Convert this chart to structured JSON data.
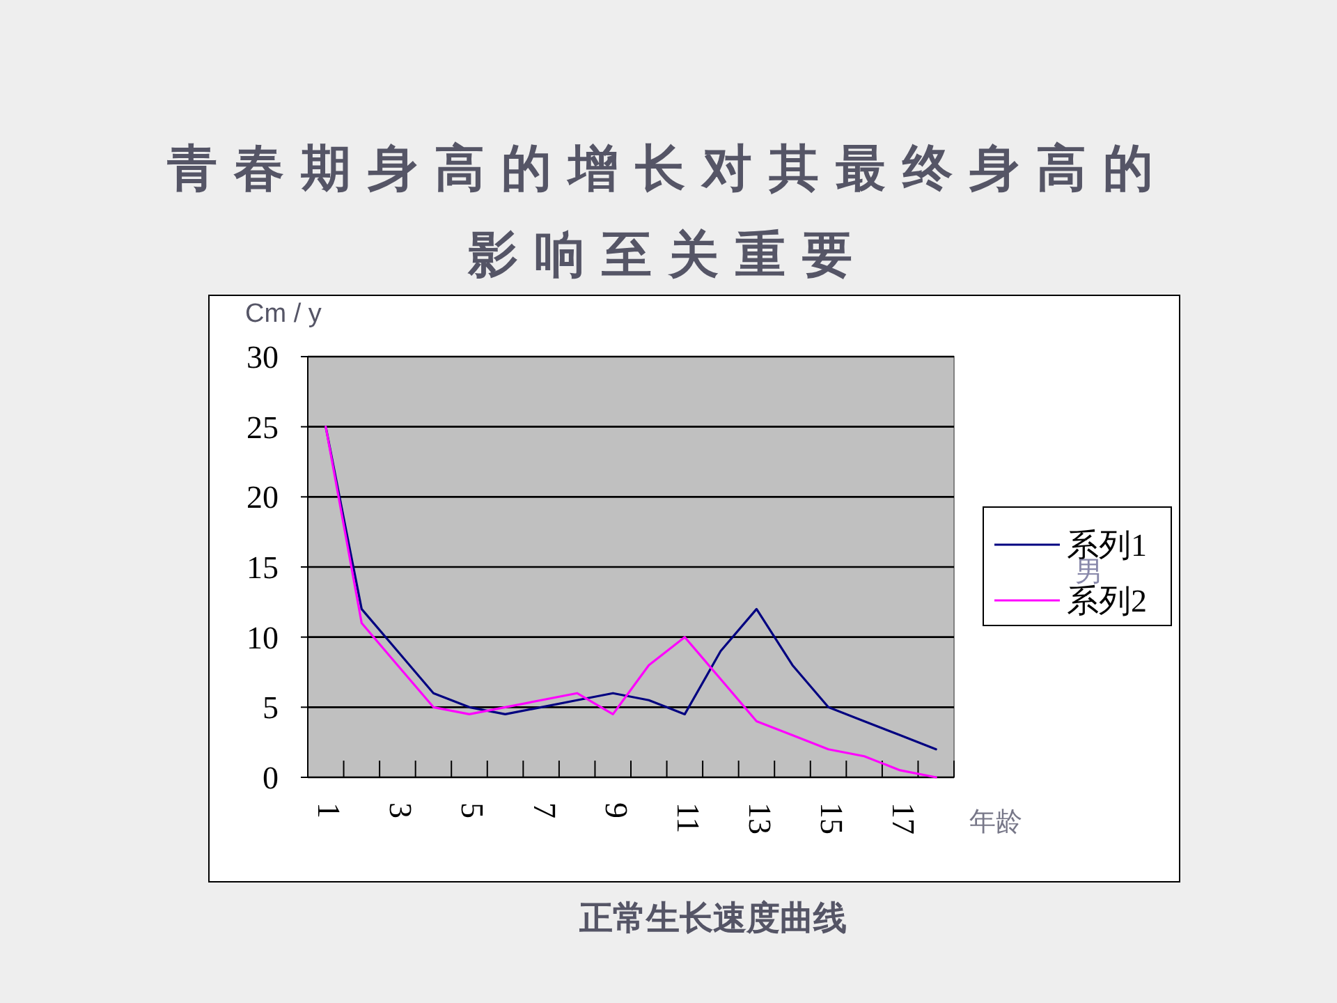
{
  "chart_data": {
    "type": "line",
    "title": "青春期身高的增长对其最终身高的影响至关重要",
    "ylabel": "Cm / y",
    "xlabel": "年龄",
    "annotations": [
      "男",
      "正常生长速度曲线"
    ],
    "categories": [
      "1",
      null,
      "3",
      null,
      "5",
      null,
      "7",
      null,
      "9",
      null,
      "11",
      null,
      "13",
      null,
      "15",
      null,
      "17",
      null
    ],
    "series": [
      {
        "name": "系列1",
        "color": "#000080",
        "values": [
          25,
          12,
          9,
          6,
          5,
          4.5,
          5,
          5.5,
          6,
          5.5,
          4.5,
          9,
          12,
          8,
          5,
          4,
          3,
          2
        ]
      },
      {
        "name": "系列2",
        "color": "#ff00ff",
        "values": [
          25,
          11,
          8,
          5,
          4.5,
          5,
          5.5,
          6,
          4.5,
          8,
          10,
          7,
          4,
          3,
          2,
          1.5,
          0.5,
          0
        ]
      }
    ],
    "ylim": [
      0,
      30
    ],
    "yticks": [
      0,
      5,
      10,
      15,
      20,
      25,
      30
    ],
    "grid": "y",
    "legend": "right",
    "marker": "none",
    "line_style": "solid"
  }
}
